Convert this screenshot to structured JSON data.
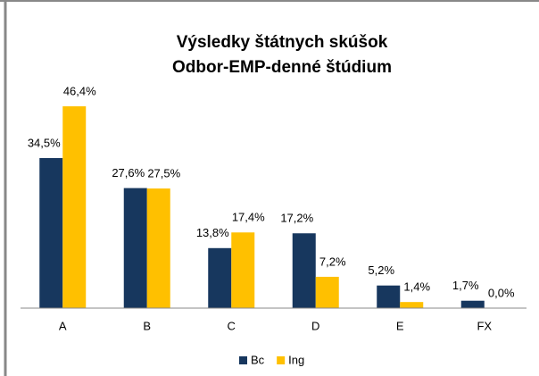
{
  "chart_data": {
    "type": "bar",
    "title": [
      "Výsledky štátnych skúšok",
      "Odbor-EMP-denné štúdium"
    ],
    "categories": [
      "A",
      "B",
      "C",
      "D",
      "E",
      "FX"
    ],
    "series": [
      {
        "name": "Bc",
        "color": "#17375e",
        "values": [
          34.5,
          27.6,
          13.8,
          17.2,
          5.2,
          1.7
        ],
        "value_labels": [
          "34,5%",
          "27,6%",
          "13,8%",
          "17,2%",
          "5,2%",
          "1,7%"
        ]
      },
      {
        "name": "Ing",
        "color": "#ffc000",
        "values": [
          46.4,
          27.5,
          17.4,
          7.2,
          1.4,
          0.0
        ],
        "value_labels": [
          "46,4%",
          "27,5%",
          "17,4%",
          "7,2%",
          "1,4%",
          "0,0%"
        ]
      }
    ],
    "ylim": [
      0,
      50
    ],
    "legend": "bottom"
  }
}
